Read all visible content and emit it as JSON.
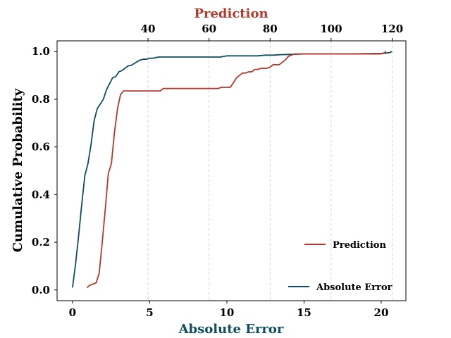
{
  "chart_data": {
    "type": "line",
    "xlabel": "Absolute Error",
    "ylabel": "Cumulative Probability",
    "top_xlabel": "Prediction",
    "xlim": [
      -1.0,
      21.6
    ],
    "ylim": [
      -0.045,
      1.045
    ],
    "top_xlim": [
      10.2,
      124.5
    ],
    "x_ticks": [
      0,
      5,
      10,
      15,
      20
    ],
    "y_ticks": [
      0.0,
      0.2,
      0.4,
      0.6,
      0.8,
      1.0
    ],
    "top_ticks": [
      40,
      60,
      80,
      100,
      120
    ],
    "grid": "vertical dashed at top-axis ticks",
    "colors": {
      "absolute_error": "#0d4f5e",
      "prediction": "#b5382a"
    },
    "series": [
      {
        "name": "Absolute Error",
        "axis": "bottom",
        "color": "#0d4f5e",
        "x": [
          0.0,
          0.2,
          0.4,
          0.6,
          0.8,
          1.0,
          1.2,
          1.4,
          1.6,
          1.8,
          2.0,
          2.2,
          2.4,
          2.6,
          2.8,
          3.0,
          3.2,
          3.4,
          3.6,
          3.8,
          4.0,
          4.2,
          4.4,
          4.6,
          4.8,
          5.0,
          5.2,
          5.4,
          5.6,
          6.0,
          7.0,
          8.0,
          9.0,
          9.6,
          9.8,
          10.0,
          10.5,
          11.0,
          11.5,
          12.0,
          12.5,
          13.0,
          13.5,
          14.0,
          15.0,
          16.0,
          18.0,
          20.0,
          20.5,
          20.7
        ],
        "y": [
          0.01,
          0.11,
          0.23,
          0.36,
          0.48,
          0.53,
          0.61,
          0.71,
          0.76,
          0.78,
          0.8,
          0.84,
          0.865,
          0.89,
          0.895,
          0.915,
          0.92,
          0.93,
          0.94,
          0.942,
          0.95,
          0.958,
          0.965,
          0.968,
          0.968,
          0.972,
          0.972,
          0.975,
          0.977,
          0.977,
          0.977,
          0.977,
          0.977,
          0.977,
          0.98,
          0.982,
          0.982,
          0.982,
          0.982,
          0.982,
          0.985,
          0.985,
          0.987,
          0.988,
          0.99,
          0.99,
          0.99,
          0.992,
          0.995,
          1.0
        ]
      },
      {
        "name": "Prediction",
        "axis": "top",
        "color": "#b5382a",
        "x": [
          20.0,
          21.0,
          23.0,
          24.0,
          25.0,
          26.0,
          27.0,
          28.0,
          29.0,
          30.0,
          31.0,
          32.0,
          33.0,
          35.0,
          38.0,
          40.0,
          44.0,
          45.0,
          50.0,
          55.0,
          60.0,
          62.0,
          63.0,
          64.0,
          65.0,
          67.0,
          68.0,
          69.0,
          70.0,
          71.0,
          72.0,
          73.0,
          74.0,
          75.0,
          76.0,
          77.0,
          78.0,
          79.0,
          80.0,
          81.0,
          82.0,
          83.0,
          84.0,
          85.0,
          86.0,
          87.0,
          88.0,
          90.0,
          100.0,
          110.0,
          116.0,
          117.0,
          118.0
        ],
        "y": [
          0.01,
          0.02,
          0.03,
          0.07,
          0.2,
          0.34,
          0.49,
          0.53,
          0.66,
          0.76,
          0.82,
          0.835,
          0.835,
          0.835,
          0.835,
          0.835,
          0.835,
          0.845,
          0.845,
          0.845,
          0.845,
          0.845,
          0.845,
          0.85,
          0.85,
          0.85,
          0.87,
          0.89,
          0.9,
          0.91,
          0.91,
          0.915,
          0.915,
          0.925,
          0.925,
          0.93,
          0.93,
          0.93,
          0.935,
          0.945,
          0.945,
          0.945,
          0.955,
          0.965,
          0.98,
          0.985,
          0.99,
          0.99,
          0.99,
          0.99,
          0.99,
          0.992,
          1.0
        ]
      }
    ],
    "legend": [
      {
        "label": "Prediction",
        "color": "#b5382a",
        "placement": "center-right"
      },
      {
        "label": "Absolute Error",
        "color": "#0d4f5e",
        "placement": "lower-right"
      }
    ]
  }
}
